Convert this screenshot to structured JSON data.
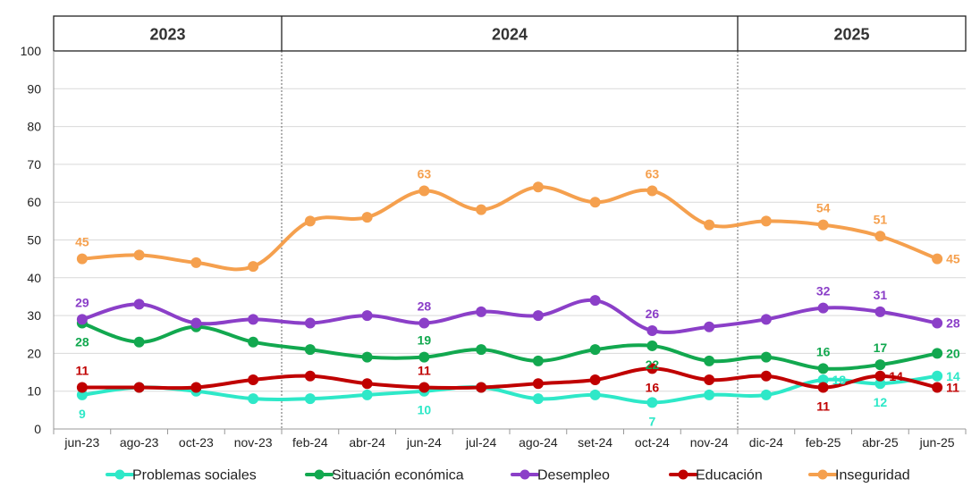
{
  "chart_data": {
    "type": "line",
    "x": [
      "jun-23",
      "ago-23",
      "oct-23",
      "nov-23",
      "feb-24",
      "abr-24",
      "jun-24",
      "jul-24",
      "ago-24",
      "set-24",
      "oct-24",
      "nov-24",
      "dic-24",
      "feb-25",
      "abr-25",
      "jun-25"
    ],
    "year_bands": [
      {
        "label": "2023",
        "from": 0,
        "to": 3
      },
      {
        "label": "2024",
        "from": 4,
        "to": 11
      },
      {
        "label": "2025",
        "from": 12,
        "to": 15
      }
    ],
    "ylim": [
      0,
      100
    ],
    "yticks": [
      0,
      10,
      20,
      30,
      40,
      50,
      60,
      70,
      80,
      90,
      100
    ],
    "grid": true,
    "legend_position": "bottom",
    "series": [
      {
        "name": "Problemas sociales",
        "color": "#2EE8C8",
        "values": [
          9,
          11,
          10,
          8,
          8,
          9,
          10,
          11,
          8,
          9,
          7,
          9,
          9,
          13,
          12,
          14
        ],
        "labels": [
          {
            "i": 0,
            "text": "9",
            "pos": "below"
          },
          {
            "i": 6,
            "text": "10",
            "pos": "below"
          },
          {
            "i": 10,
            "text": "7",
            "pos": "below"
          },
          {
            "i": 13,
            "text": "13",
            "pos": "right"
          },
          {
            "i": 14,
            "text": "12",
            "pos": "below"
          },
          {
            "i": 15,
            "text": "14",
            "pos": "right"
          }
        ]
      },
      {
        "name": "Situación económica",
        "color": "#12A84F",
        "values": [
          28,
          23,
          27,
          23,
          21,
          19,
          19,
          21,
          18,
          21,
          22,
          18,
          19,
          16,
          17,
          20
        ],
        "labels": [
          {
            "i": 0,
            "text": "28",
            "pos": "below"
          },
          {
            "i": 6,
            "text": "19",
            "pos": "above"
          },
          {
            "i": 10,
            "text": "22",
            "pos": "below"
          },
          {
            "i": 13,
            "text": "16",
            "pos": "above"
          },
          {
            "i": 14,
            "text": "17",
            "pos": "above"
          },
          {
            "i": 15,
            "text": "20",
            "pos": "right"
          }
        ]
      },
      {
        "name": "Desempleo",
        "color": "#8B3FC8",
        "values": [
          29,
          33,
          28,
          29,
          28,
          30,
          28,
          31,
          30,
          34,
          26,
          27,
          29,
          32,
          31,
          28
        ],
        "labels": [
          {
            "i": 0,
            "text": "29",
            "pos": "above"
          },
          {
            "i": 6,
            "text": "28",
            "pos": "above"
          },
          {
            "i": 10,
            "text": "26",
            "pos": "above"
          },
          {
            "i": 13,
            "text": "32",
            "pos": "above"
          },
          {
            "i": 14,
            "text": "31",
            "pos": "above"
          },
          {
            "i": 15,
            "text": "28",
            "pos": "right"
          }
        ]
      },
      {
        "name": "Educación",
        "color": "#C00000",
        "values": [
          11,
          11,
          11,
          13,
          14,
          12,
          11,
          11,
          12,
          13,
          16,
          13,
          14,
          11,
          14,
          11
        ],
        "labels": [
          {
            "i": 0,
            "text": "11",
            "pos": "above"
          },
          {
            "i": 6,
            "text": "11",
            "pos": "above"
          },
          {
            "i": 10,
            "text": "16",
            "pos": "below"
          },
          {
            "i": 13,
            "text": "11",
            "pos": "below"
          },
          {
            "i": 14,
            "text": "14",
            "pos": "right"
          },
          {
            "i": 15,
            "text": "11",
            "pos": "right"
          }
        ]
      },
      {
        "name": "Inseguridad",
        "color": "#F5A04E",
        "values": [
          45,
          46,
          44,
          43,
          55,
          56,
          63,
          58,
          64,
          60,
          63,
          54,
          55,
          54,
          51,
          45
        ],
        "labels": [
          {
            "i": 0,
            "text": "45",
            "pos": "above"
          },
          {
            "i": 6,
            "text": "63",
            "pos": "above"
          },
          {
            "i": 10,
            "text": "63",
            "pos": "above"
          },
          {
            "i": 13,
            "text": "54",
            "pos": "above"
          },
          {
            "i": 14,
            "text": "51",
            "pos": "above"
          },
          {
            "i": 15,
            "text": "45",
            "pos": "right"
          }
        ]
      }
    ]
  }
}
